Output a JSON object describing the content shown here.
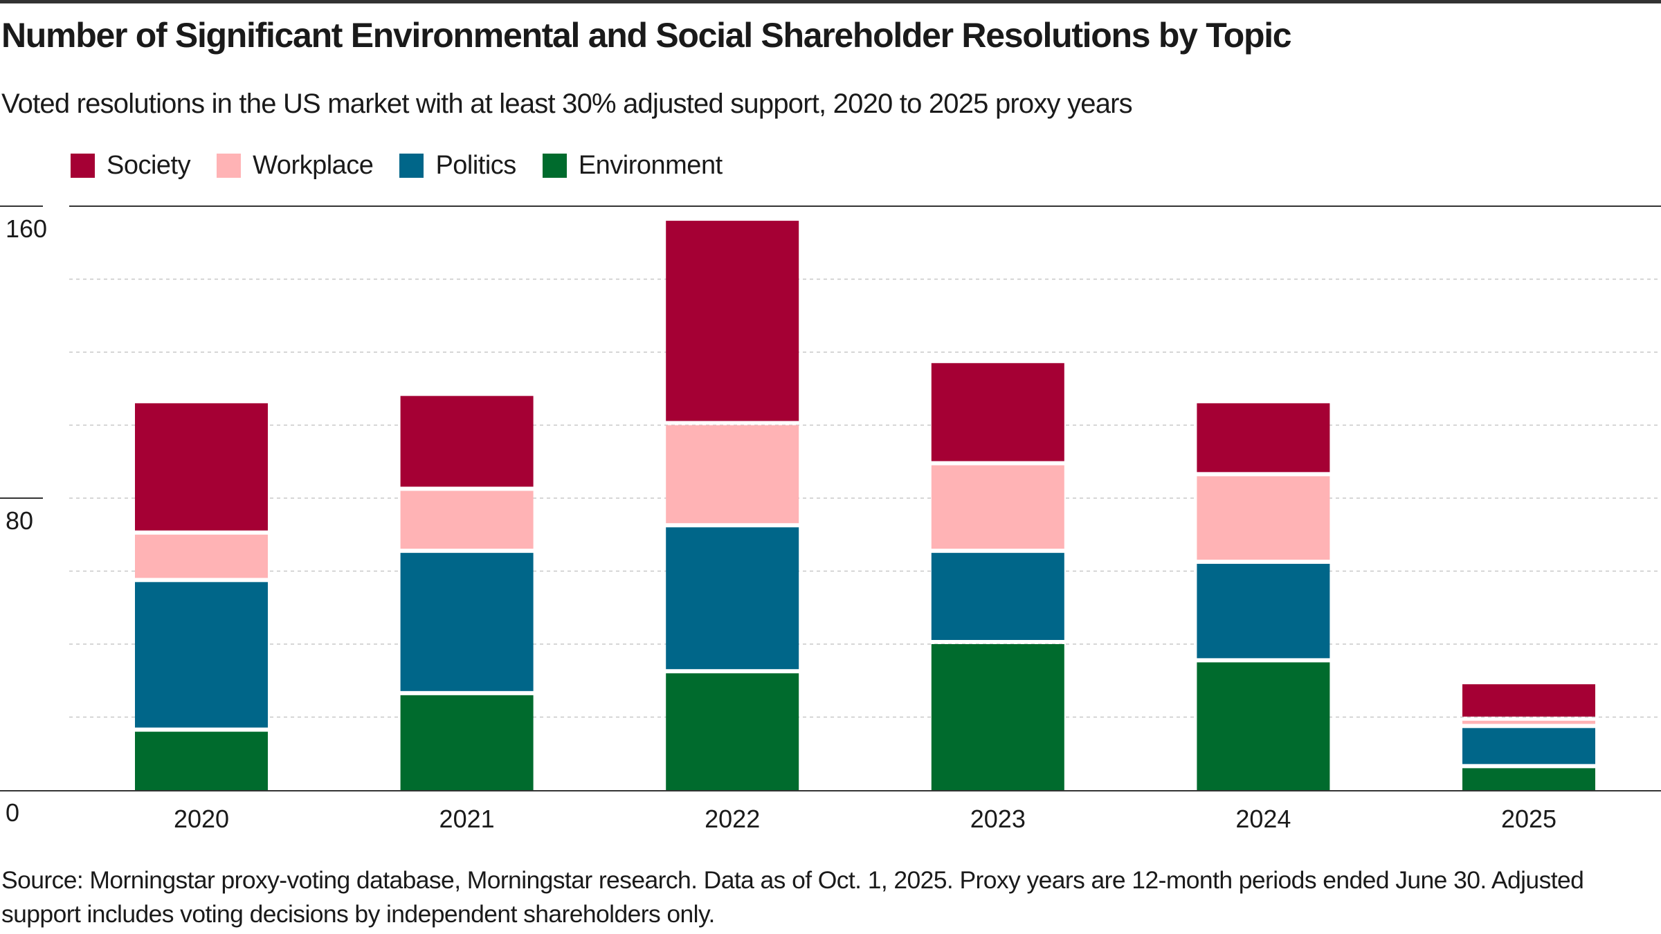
{
  "title": "Number of Significant Environmental and Social Shareholder Resolutions by Topic",
  "subtitle": "Voted resolutions in the US market with at least 30% adjusted support, 2020 to 2025 proxy years",
  "legend": [
    {
      "label": "Society",
      "color": "#A50034"
    },
    {
      "label": "Workplace",
      "color": "#FFB3B5"
    },
    {
      "label": "Politics",
      "color": "#006689"
    },
    {
      "label": "Environment",
      "color": "#006B2D"
    }
  ],
  "source": "Source: Morningstar proxy-voting database, Morningstar research. Data as of Oct. 1, 2025. Proxy years are 12-month periods ended June 30. Adjusted support includes voting decisions by independent shareholders only.",
  "chart_data": {
    "type": "bar",
    "stacked": true,
    "title": "Number of Significant Environmental and Social Shareholder Resolutions by Topic",
    "subtitle": "Voted resolutions in the US market with at least 30% adjusted support, 2020 to 2025 proxy years",
    "xlabel": "",
    "ylabel": "",
    "categories": [
      "2020",
      "2021",
      "2022",
      "2023",
      "2024",
      "2025"
    ],
    "ylim": [
      0,
      160
    ],
    "yticks": [
      0,
      80,
      160
    ],
    "grid": true,
    "legend_position": "top-left",
    "series": [
      {
        "name": "Environment",
        "color": "#006B2D",
        "values": [
          16,
          26,
          32,
          40,
          35,
          6
        ]
      },
      {
        "name": "Politics",
        "color": "#006689",
        "values": [
          41,
          39,
          40,
          25,
          27,
          11
        ]
      },
      {
        "name": "Workplace",
        "color": "#FFB3B5",
        "values": [
          13,
          17,
          28,
          24,
          24,
          2
        ]
      },
      {
        "name": "Society",
        "color": "#A50034",
        "values": [
          36,
          26,
          56,
          28,
          20,
          10
        ]
      }
    ]
  }
}
